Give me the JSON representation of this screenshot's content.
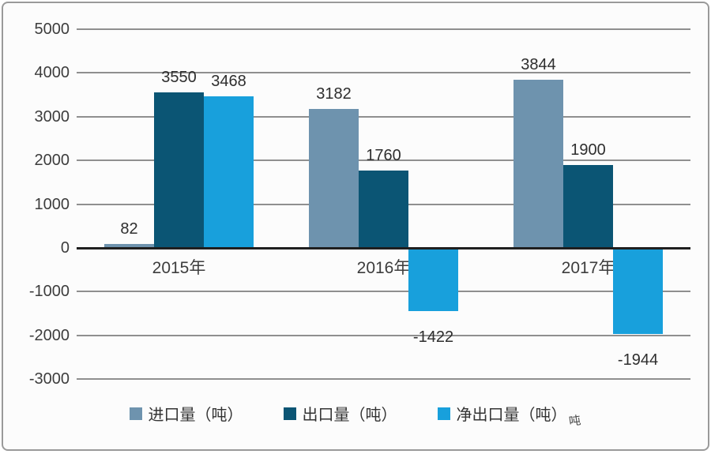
{
  "chart_data": {
    "type": "bar",
    "categories": [
      "2015年",
      "2016年",
      "2017年"
    ],
    "series": [
      {
        "id": "import-volume",
        "name": "进口量（吨）",
        "values": [
          82,
          3182,
          3844
        ],
        "color": "#6E93AE"
      },
      {
        "id": "export-volume",
        "name": "出口量（吨）",
        "values": [
          3550,
          1760,
          1900
        ],
        "color": "#0B5574"
      },
      {
        "id": "net-export-volume",
        "name": "净出口量（吨）",
        "values": [
          3468,
          -1422,
          -1944
        ],
        "color": "#18A0DC"
      }
    ],
    "yticks": [
      5000,
      4000,
      3000,
      2000,
      1000,
      0,
      -1000,
      -2000,
      -3000
    ],
    "ylim": [
      -3000,
      5000
    ],
    "grid": true,
    "legend_position": "bottom",
    "data_labels": true,
    "title": "",
    "xlabel": "",
    "ylabel": ""
  },
  "legend": {
    "artifact_text": "吨"
  },
  "colors": {
    "grid": "#8F8F8F",
    "zero_axis": "#1F1F1F",
    "text": "#3D3D3D",
    "background": "#FCFCFC",
    "frame_border": "#9A9A9A"
  }
}
